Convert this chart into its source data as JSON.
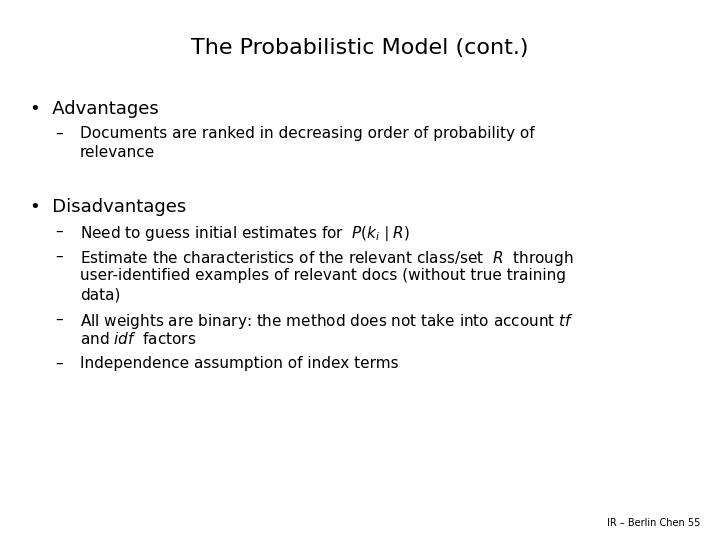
{
  "title": "The Probabilistic Model (cont.)",
  "background_color": "#ffffff",
  "text_color": "#000000",
  "title_fontsize": 16,
  "bullet_fontsize": 13,
  "body_fontsize": 11,
  "footer_fontsize": 7,
  "footer": "IR – Berlin Chen 55",
  "sections": [
    {
      "bullet": "•  Advantages",
      "items": [
        [
          "Documents are ranked in decreasing order of probability of",
          "relevance"
        ]
      ]
    },
    {
      "bullet": "•  Disadvantages",
      "items": [
        [
          "Need to guess initial estimates for  $P(k_i \\mid R)$"
        ],
        [
          "Estimate the characteristics of the relevant class/set  $R$  through",
          "user-identified examples of relevant docs (without true training",
          "data)"
        ],
        [
          "All weights are binary: the method does not take into account $\\mathit{tf}$",
          "and $\\mathit{idf}$  factors"
        ],
        [
          "Independence assumption of index terms"
        ]
      ]
    }
  ]
}
